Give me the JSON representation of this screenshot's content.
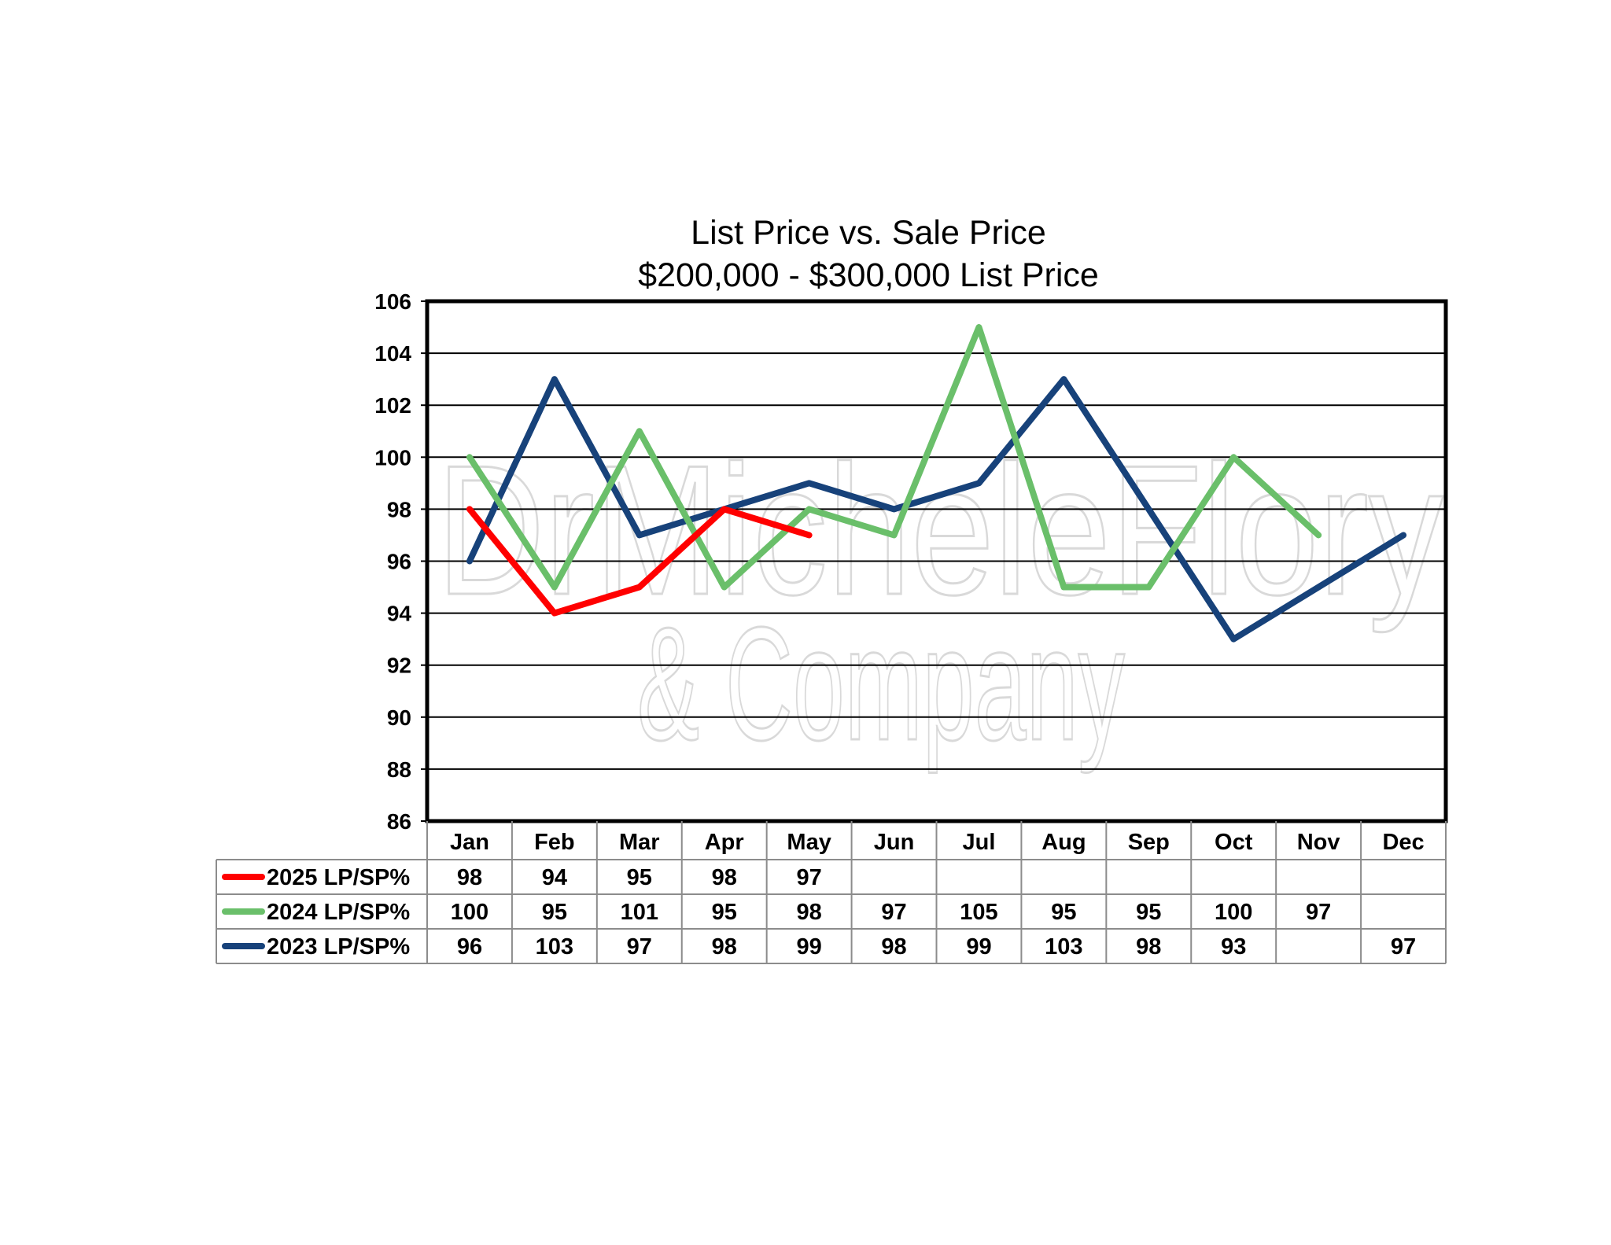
{
  "chart_data": {
    "type": "line",
    "title": "List Price vs. Sale Price",
    "subtitle": "$200,000 - $300,000 List Price",
    "categories": [
      "Jan",
      "Feb",
      "Mar",
      "Apr",
      "May",
      "Jun",
      "Jul",
      "Aug",
      "Sep",
      "Oct",
      "Nov",
      "Dec"
    ],
    "ylim": [
      86,
      106
    ],
    "yticks": [
      86,
      88,
      90,
      92,
      94,
      96,
      98,
      100,
      102,
      104,
      106
    ],
    "grid": true,
    "legend": "data-table-below",
    "series": [
      {
        "name": "2025 LP/SP%",
        "color": "#ff0000",
        "values": [
          98,
          94,
          95,
          98,
          97,
          null,
          null,
          null,
          null,
          null,
          null,
          null
        ]
      },
      {
        "name": "2024 LP/SP%",
        "color": "#6abf6a",
        "values": [
          100,
          95,
          101,
          95,
          98,
          97,
          105,
          95,
          95,
          100,
          97,
          null
        ]
      },
      {
        "name": "2023 LP/SP%",
        "color": "#17427a",
        "values": [
          96,
          103,
          97,
          98,
          99,
          98,
          99,
          103,
          98,
          93,
          null,
          97
        ]
      }
    ]
  },
  "watermark": {
    "line1": "DrMicheleFlory",
    "line2": "& Company"
  }
}
